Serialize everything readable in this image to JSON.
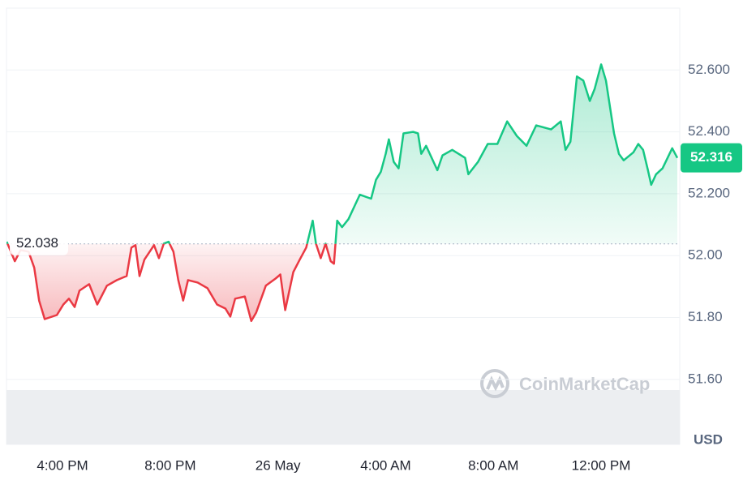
{
  "chart_data": {
    "type": "line",
    "x": [
      13.93,
      14.23,
      14.44,
      14.74,
      14.95,
      15.13,
      15.34,
      15.79,
      16.03,
      16.24,
      16.45,
      16.63,
      16.99,
      17.29,
      17.65,
      18.02,
      18.38,
      18.56,
      18.71,
      18.86,
      19.04,
      19.4,
      19.58,
      19.76,
      19.94,
      20.12,
      20.3,
      20.48,
      20.66,
      21.02,
      21.38,
      21.74,
      22.05,
      22.23,
      22.41,
      22.77,
      23.01,
      23.19,
      23.55,
      23.91,
      24.09,
      24.27,
      24.57,
      24.81,
      25.05,
      25.29,
      25.41,
      25.59,
      25.77,
      25.96,
      26.08,
      26.2,
      26.38,
      26.62,
      27.04,
      27.46,
      27.64,
      27.82,
      28.0,
      28.12,
      28.3,
      28.48,
      28.66,
      29.02,
      29.2,
      29.32,
      29.5,
      29.92,
      30.11,
      30.47,
      30.95,
      31.07,
      31.43,
      31.79,
      32.15,
      32.51,
      32.87,
      33.23,
      33.59,
      34.14,
      34.5,
      34.68,
      34.86,
      35.1,
      35.34,
      35.58,
      35.76,
      36.0,
      36.18,
      36.48,
      36.66,
      36.84,
      37.2,
      37.38,
      37.56,
      37.74,
      37.86,
      38.04,
      38.28,
      38.64,
      38.83
    ],
    "values": [
      52.045,
      51.982,
      52.018,
      52.013,
      51.961,
      51.855,
      51.795,
      51.808,
      51.842,
      51.861,
      51.834,
      51.887,
      51.908,
      51.842,
      51.903,
      51.921,
      51.934,
      52.026,
      52.034,
      51.934,
      51.987,
      52.034,
      51.992,
      52.039,
      52.045,
      52.013,
      51.921,
      51.855,
      51.921,
      51.913,
      51.895,
      51.842,
      51.829,
      51.803,
      51.861,
      51.868,
      51.789,
      51.816,
      51.903,
      51.926,
      51.939,
      51.824,
      51.947,
      51.987,
      52.026,
      52.113,
      52.039,
      51.992,
      52.039,
      51.982,
      51.974,
      52.113,
      52.092,
      52.118,
      52.197,
      52.184,
      52.245,
      52.271,
      52.329,
      52.376,
      52.303,
      52.282,
      52.395,
      52.4,
      52.395,
      52.329,
      52.355,
      52.276,
      52.324,
      52.342,
      52.316,
      52.263,
      52.303,
      52.361,
      52.361,
      52.434,
      52.387,
      52.355,
      52.421,
      52.408,
      52.434,
      52.342,
      52.368,
      52.579,
      52.566,
      52.5,
      52.539,
      52.618,
      52.566,
      52.395,
      52.329,
      52.308,
      52.334,
      52.361,
      52.342,
      52.276,
      52.229,
      52.263,
      52.282,
      52.347,
      52.316
    ],
    "baseline": 52.038,
    "up_color": "#16c784",
    "down_color": "#ea3943",
    "xlim": [
      13.92,
      38.92
    ],
    "xticks": [
      {
        "value": 16,
        "label": "4:00 PM"
      },
      {
        "value": 20,
        "label": "8:00 PM"
      },
      {
        "value": 24,
        "label": "26 May"
      },
      {
        "value": 28,
        "label": "4:00 AM"
      },
      {
        "value": 32,
        "label": "8:00 AM"
      },
      {
        "value": 36,
        "label": "12:00 PM"
      }
    ],
    "ylim": [
      51.39,
      52.8
    ],
    "yticks": [
      {
        "value": 52.6,
        "label": "52.600"
      },
      {
        "value": 52.4,
        "label": "52.400"
      },
      {
        "value": 52.2,
        "label": "52.200"
      },
      {
        "value": 52,
        "label": "52.00"
      },
      {
        "value": 51.8,
        "label": "51.80"
      },
      {
        "value": 51.6,
        "label": "51.60"
      }
    ],
    "grid": true,
    "y_axis_unit": "USD",
    "watermark": "CoinMarketCap"
  }
}
